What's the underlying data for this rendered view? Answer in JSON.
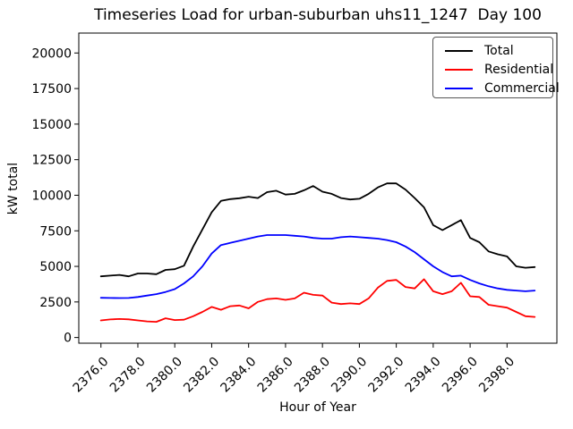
{
  "chart_data": {
    "type": "line",
    "title": "Timeseries Load for urban-suburban uhs11_1247  Day 100",
    "xlabel": "Hour of Year",
    "ylabel": "kW total",
    "xlim": [
      2374.8,
      2400.7
    ],
    "ylim": [
      -400,
      21400
    ],
    "grid": false,
    "legend_position": "upper right",
    "x_ticks": {
      "values": [
        2376,
        2378,
        2380,
        2382,
        2384,
        2386,
        2388,
        2390,
        2392,
        2394,
        2396,
        2398
      ],
      "labels": [
        "2376.0",
        "2378.0",
        "2380.0",
        "2382.0",
        "2384.0",
        "2386.0",
        "2388.0",
        "2390.0",
        "2392.0",
        "2394.0",
        "2396.0",
        "2398.0"
      ]
    },
    "y_ticks": {
      "values": [
        0,
        2500,
        5000,
        7500,
        10000,
        12500,
        15000,
        17500,
        20000
      ],
      "labels": [
        "0",
        "2500",
        "5000",
        "7500",
        "10000",
        "12500",
        "15000",
        "17500",
        "20000"
      ]
    },
    "x": [
      2376.0,
      2376.5,
      2377.0,
      2377.5,
      2378.0,
      2378.5,
      2379.0,
      2379.5,
      2380.0,
      2380.5,
      2381.0,
      2381.5,
      2382.0,
      2382.5,
      2383.0,
      2383.5,
      2384.0,
      2384.5,
      2385.0,
      2385.5,
      2386.0,
      2386.5,
      2387.0,
      2387.5,
      2388.0,
      2388.5,
      2389.0,
      2389.5,
      2390.0,
      2390.5,
      2391.0,
      2391.5,
      2392.0,
      2392.5,
      2393.0,
      2393.5,
      2394.0,
      2394.5,
      2395.0,
      2395.5,
      2396.0,
      2396.5,
      2397.0,
      2397.5,
      2398.0,
      2398.5,
      2399.0,
      2399.5
    ],
    "series": [
      {
        "name": "Total",
        "color": "#000000",
        "values": [
          4300,
          4350,
          4400,
          4300,
          4500,
          4500,
          4450,
          4750,
          4800,
          5050,
          6400,
          7600,
          8800,
          9600,
          9730,
          9790,
          9900,
          9800,
          10220,
          10320,
          10050,
          10100,
          10350,
          10650,
          10250,
          10100,
          9800,
          9700,
          9750,
          10100,
          10550,
          10830,
          10830,
          10400,
          9800,
          9150,
          7900,
          7550,
          7900,
          8250,
          7000,
          6700,
          6050,
          5850,
          5700,
          5000,
          4900,
          4950
        ]
      },
      {
        "name": "Residential",
        "color": "#ff0000",
        "values": [
          1200,
          1270,
          1300,
          1280,
          1200,
          1130,
          1100,
          1350,
          1230,
          1250,
          1500,
          1800,
          2150,
          1950,
          2200,
          2250,
          2050,
          2500,
          2700,
          2750,
          2650,
          2750,
          3150,
          3000,
          2950,
          2450,
          2350,
          2400,
          2350,
          2750,
          3500,
          3980,
          4050,
          3550,
          3450,
          4100,
          3250,
          3050,
          3250,
          3850,
          2900,
          2850,
          2300,
          2200,
          2100,
          1800,
          1500,
          1450
        ]
      },
      {
        "name": "Commercial",
        "color": "#0000ff",
        "values": [
          2790,
          2780,
          2770,
          2780,
          2850,
          2950,
          3050,
          3200,
          3400,
          3800,
          4300,
          5000,
          5900,
          6500,
          6650,
          6800,
          6950,
          7100,
          7200,
          7200,
          7200,
          7150,
          7100,
          7000,
          6950,
          6950,
          7050,
          7100,
          7050,
          7000,
          6950,
          6850,
          6700,
          6400,
          6000,
          5500,
          5000,
          4600,
          4300,
          4350,
          4050,
          3800,
          3600,
          3450,
          3350,
          3300,
          3250,
          3300
        ]
      }
    ]
  }
}
